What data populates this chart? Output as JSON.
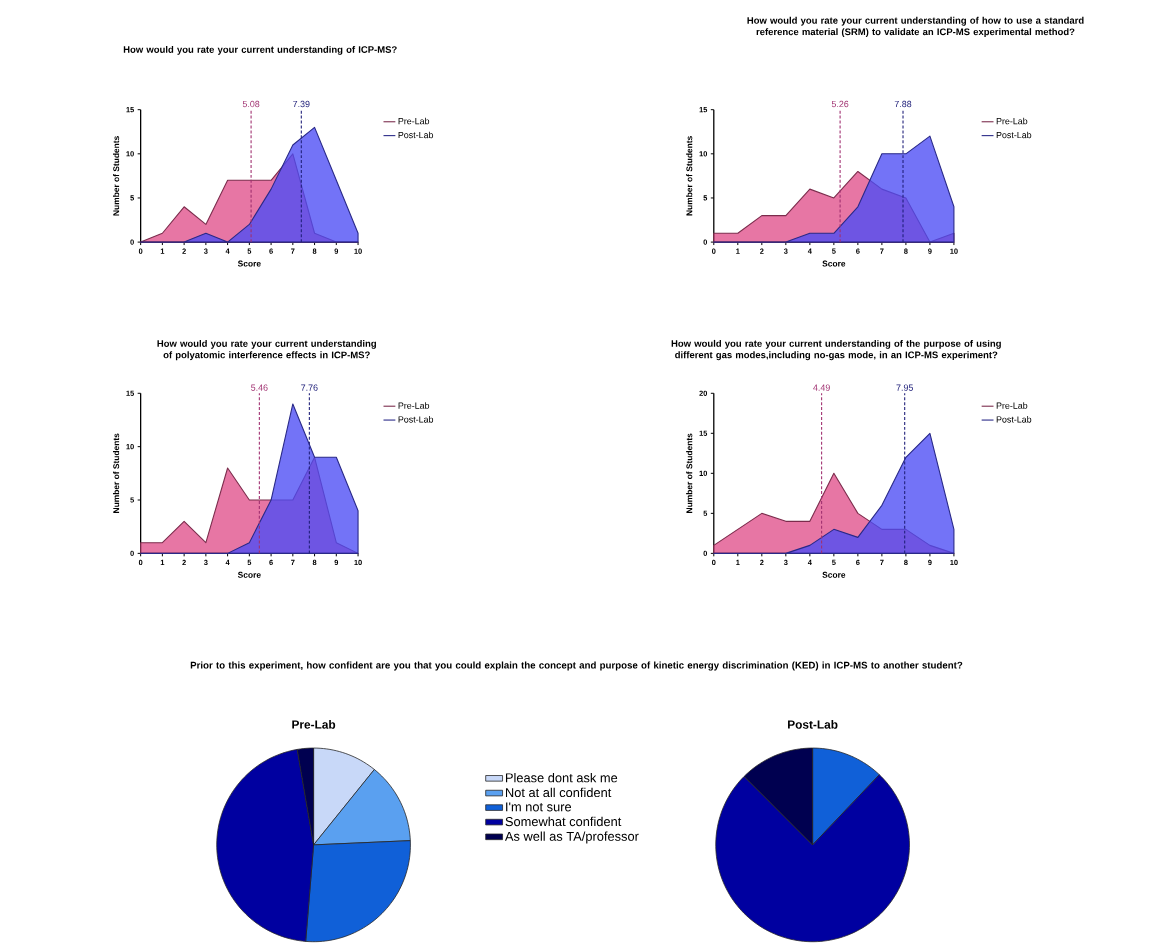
{
  "chart_data": [
    {
      "type": "area",
      "title": "How would you rate your current understanding of ICP-MS?",
      "xlabel": "Score",
      "ylabel": "Number of Students",
      "x": [
        0,
        1,
        2,
        3,
        4,
        5,
        6,
        7,
        8,
        9,
        10
      ],
      "xlim": [
        0,
        10
      ],
      "ylim": [
        0,
        15
      ],
      "xticks": [
        0,
        1,
        2,
        3,
        4,
        5,
        6,
        7,
        8,
        9,
        10
      ],
      "yticks": [
        0,
        5,
        10,
        15
      ],
      "legend": "right",
      "marker": "none",
      "series": [
        {
          "name": "Pre-Lab",
          "color": "#e0508a",
          "values": [
            0,
            1,
            4,
            2,
            7,
            7,
            7,
            10,
            1,
            0,
            0
          ]
        },
        {
          "name": "Post-Lab",
          "color": "#4b4bf5",
          "values": [
            0,
            0,
            0,
            1,
            0,
            2,
            6,
            11,
            13,
            7,
            1
          ]
        }
      ],
      "ref_lines": [
        {
          "axis": "x",
          "value": 5.08,
          "label": "5.08",
          "color": "#a03070",
          "line_style": "dashed"
        },
        {
          "axis": "x",
          "value": 7.39,
          "label": "7.39",
          "color": "#20207a",
          "line_style": "dashed"
        }
      ]
    },
    {
      "type": "area",
      "title": "How would you rate your current understanding of how to use a standard reference material (SRM) to validate an ICP-MS experimental method?",
      "xlabel": "Score",
      "ylabel": "Number of Students",
      "x": [
        0,
        1,
        2,
        3,
        4,
        5,
        6,
        7,
        8,
        9,
        10
      ],
      "xlim": [
        0,
        10
      ],
      "ylim": [
        0,
        15
      ],
      "xticks": [
        0,
        1,
        2,
        3,
        4,
        5,
        6,
        7,
        8,
        9,
        10
      ],
      "yticks": [
        0,
        5,
        10,
        15
      ],
      "legend": "right",
      "marker": "none",
      "series": [
        {
          "name": "Pre-Lab",
          "color": "#e0508a",
          "values": [
            1,
            1,
            3,
            3,
            6,
            5,
            8,
            6,
            5,
            0,
            1
          ]
        },
        {
          "name": "Post-Lab",
          "color": "#4b4bf5",
          "values": [
            0,
            0,
            0,
            0,
            1,
            1,
            4,
            10,
            10,
            12,
            4
          ]
        }
      ],
      "ref_lines": [
        {
          "axis": "x",
          "value": 5.26,
          "label": "5.26",
          "color": "#a03070",
          "line_style": "dashed"
        },
        {
          "axis": "x",
          "value": 7.88,
          "label": "7.88",
          "color": "#20207a",
          "line_style": "dashed"
        }
      ]
    },
    {
      "type": "area",
      "title": "How would you rate your current understanding of polyatomic interference effects in ICP-MS?",
      "xlabel": "Score",
      "ylabel": "Number of Students",
      "x": [
        0,
        1,
        2,
        3,
        4,
        5,
        6,
        7,
        8,
        9,
        10
      ],
      "xlim": [
        0,
        10
      ],
      "ylim": [
        0,
        15
      ],
      "xticks": [
        0,
        1,
        2,
        3,
        4,
        5,
        6,
        7,
        8,
        9,
        10
      ],
      "yticks": [
        0,
        5,
        10,
        15
      ],
      "legend": "right",
      "marker": "none",
      "series": [
        {
          "name": "Pre-Lab",
          "color": "#e0508a",
          "values": [
            1,
            1,
            3,
            1,
            8,
            5,
            5,
            5,
            9,
            1,
            0
          ]
        },
        {
          "name": "Post-Lab",
          "color": "#4b4bf5",
          "values": [
            0,
            0,
            0,
            0,
            0,
            1,
            5,
            14,
            9,
            9,
            4
          ]
        }
      ],
      "ref_lines": [
        {
          "axis": "x",
          "value": 5.46,
          "label": "5.46",
          "color": "#a03070",
          "line_style": "dashed"
        },
        {
          "axis": "x",
          "value": 7.76,
          "label": "7.76",
          "color": "#20207a",
          "line_style": "dashed"
        }
      ]
    },
    {
      "type": "area",
      "title": "How would you rate your current understanding of the purpose of using different gas modes,including no-gas mode, in an ICP-MS experiment?",
      "xlabel": "Score",
      "ylabel": "Number of Students",
      "x": [
        0,
        1,
        2,
        3,
        4,
        5,
        6,
        7,
        8,
        9,
        10
      ],
      "xlim": [
        0,
        10
      ],
      "ylim": [
        0,
        20
      ],
      "xticks": [
        0,
        1,
        2,
        3,
        4,
        5,
        6,
        7,
        8,
        9,
        10
      ],
      "yticks": [
        0,
        5,
        10,
        15,
        20
      ],
      "legend": "right",
      "marker": "none",
      "series": [
        {
          "name": "Pre-Lab",
          "color": "#e0508a",
          "values": [
            1,
            3,
            5,
            4,
            4,
            10,
            5,
            3,
            3,
            1,
            0
          ]
        },
        {
          "name": "Post-Lab",
          "color": "#4b4bf5",
          "values": [
            0,
            0,
            0,
            0,
            1,
            3,
            2,
            6,
            12,
            15,
            3
          ]
        }
      ],
      "ref_lines": [
        {
          "axis": "x",
          "value": 4.49,
          "label": "4.49",
          "color": "#a03070",
          "line_style": "dashed"
        },
        {
          "axis": "x",
          "value": 7.95,
          "label": "7.95",
          "color": "#20207a",
          "line_style": "dashed"
        }
      ]
    },
    {
      "type": "pie",
      "title": "Prior to this experiment, how confident are you that you could explain the concept and purpose of kinetic energy discrimination (KED) in ICP-MS to another student?",
      "legend": "top",
      "categories": [
        "Please dont ask me",
        "Not at all confident",
        "I'm not sure",
        "Somewhat confident",
        "As well as TA/professor"
      ],
      "colors": [
        "#c8d8f8",
        "#5aa0f0",
        "#1060d8",
        "#0000a0",
        "#000050"
      ],
      "series": [
        {
          "name": "Pre-Lab",
          "values": [
            10.8,
            13.5,
            27.0,
            46.0,
            2.7
          ]
        },
        {
          "name": "Post-Lab",
          "values": [
            0,
            0,
            12.1,
            75.4,
            12.5
          ]
        }
      ]
    }
  ]
}
